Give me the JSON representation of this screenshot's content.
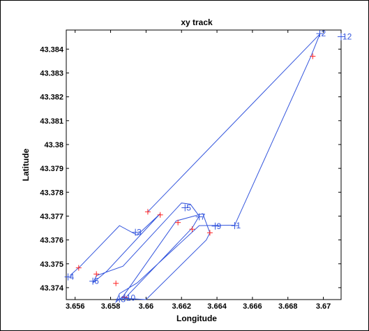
{
  "chart_data": {
    "type": "line",
    "title": "xy track",
    "xlabel": "Longitude",
    "ylabel": "Latitude",
    "xlim": [
      3.6555,
      3.671
    ],
    "ylim": [
      43.3735,
      43.3848
    ],
    "xticks": [
      "3.656",
      "3.658",
      "3.66",
      "3.662",
      "3.664",
      "3.666",
      "3.668",
      "3.67"
    ],
    "xtick_values": [
      3.656,
      3.658,
      3.66,
      3.662,
      3.664,
      3.666,
      3.668,
      3.67
    ],
    "yticks": [
      "43.374",
      "43.375",
      "43.376",
      "43.377",
      "43.378",
      "43.379",
      "43.38",
      "43.381",
      "43.382",
      "43.383",
      "43.384"
    ],
    "ytick_values": [
      43.374,
      43.375,
      43.376,
      43.377,
      43.378,
      43.379,
      43.38,
      43.381,
      43.382,
      43.383,
      43.384
    ],
    "grid": false,
    "legend": "none",
    "colors": {
      "track": "#3355dd",
      "red_marker": "#ff2222",
      "axis": "#000000"
    },
    "track": [
      [
        3.6601,
        43.37718
      ],
      [
        3.6698,
        43.38463
      ],
      [
        3.6693,
        43.3837
      ],
      [
        3.665,
        43.37662
      ],
      [
        3.663,
        43.3766
      ],
      [
        3.6595,
        43.3742
      ],
      [
        3.6585,
        43.37375
      ],
      [
        3.6583,
        43.3734
      ],
      [
        3.6587,
        43.37363
      ],
      [
        3.6617,
        43.3768
      ],
      [
        3.6632,
        43.3771
      ],
      [
        3.6636,
        43.3763
      ],
      [
        3.6634,
        43.376
      ],
      [
        3.66,
        43.3735
      ],
      [
        3.6588,
        43.37355
      ],
      [
        3.6626,
        43.3765
      ],
      [
        3.663,
        43.377
      ],
      [
        3.6625,
        43.3775
      ],
      [
        3.662,
        43.37755
      ],
      [
        3.6587,
        43.3749
      ],
      [
        3.6572,
        43.3745
      ],
      [
        3.657,
        43.3742
      ],
      [
        3.6578,
        43.3747
      ],
      [
        3.6608,
        43.3771
      ],
      [
        3.6595,
        43.3762
      ],
      [
        3.6585,
        43.3766
      ],
      [
        3.6563,
        43.3749
      ],
      [
        3.6557,
        43.3745
      ]
    ],
    "red_markers": [
      [
        3.6601,
        43.37718
      ],
      [
        3.6694,
        43.3837
      ],
      [
        3.6608,
        43.37705
      ],
      [
        3.6618,
        43.37673
      ],
      [
        3.6626,
        43.37645
      ],
      [
        3.6636,
        43.3763
      ],
      [
        3.6583,
        43.37418
      ],
      [
        3.6572,
        43.37457
      ],
      [
        3.6562,
        43.37483
      ],
      [
        3.6588,
        43.3736
      ]
    ],
    "waypoints": [
      {
        "label": "1",
        "x": 3.665,
        "y": 43.3766
      },
      {
        "label": "2",
        "x": 3.6698,
        "y": 43.38465
      },
      {
        "label": "3",
        "x": 3.6594,
        "y": 43.37632
      },
      {
        "label": "4",
        "x": 3.6556,
        "y": 43.37445
      },
      {
        "label": "5",
        "x": 3.6622,
        "y": 43.37735
      },
      {
        "label": "6",
        "x": 3.657,
        "y": 43.37427
      },
      {
        "label": "7",
        "x": 3.663,
        "y": 43.37697
      },
      {
        "label": "8",
        "x": 3.6585,
        "y": 43.37352
      },
      {
        "label": "9",
        "x": 3.6639,
        "y": 43.37658
      },
      {
        "label": "10",
        "x": 3.6588,
        "y": 43.37357
      },
      {
        "label": "12",
        "x": 3.671,
        "y": 43.38452
      }
    ]
  }
}
